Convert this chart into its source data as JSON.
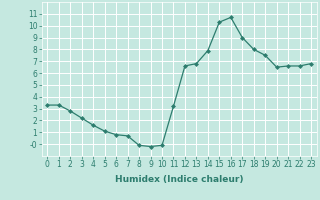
{
  "x": [
    0,
    1,
    2,
    3,
    4,
    5,
    6,
    7,
    8,
    9,
    10,
    11,
    12,
    13,
    14,
    15,
    16,
    17,
    18,
    19,
    20,
    21,
    22,
    23
  ],
  "y": [
    3.3,
    3.3,
    2.8,
    2.2,
    1.6,
    1.1,
    0.8,
    0.7,
    -0.1,
    -0.2,
    -0.1,
    3.2,
    6.6,
    6.8,
    7.9,
    10.3,
    10.7,
    9.0,
    8.0,
    7.5,
    6.5,
    6.6,
    6.6,
    6.8
  ],
  "xlabel": "Humidex (Indice chaleur)",
  "xlim": [
    -0.5,
    23.5
  ],
  "ylim": [
    -1.0,
    12.0
  ],
  "yticks": [
    0,
    1,
    2,
    3,
    4,
    5,
    6,
    7,
    8,
    9,
    10,
    11
  ],
  "ytick_labels": [
    "-0",
    "1",
    "2",
    "3",
    "4",
    "5",
    "6",
    "7",
    "8",
    "9",
    "10",
    "11"
  ],
  "xticks": [
    0,
    1,
    2,
    3,
    4,
    5,
    6,
    7,
    8,
    9,
    10,
    11,
    12,
    13,
    14,
    15,
    16,
    17,
    18,
    19,
    20,
    21,
    22,
    23
  ],
  "line_color": "#2d7d6e",
  "marker": "D",
  "marker_size": 2.0,
  "bg_color": "#c5e8e0",
  "grid_color": "#ffffff",
  "tick_color": "#2d7d6e",
  "label_fontsize": 6.0,
  "tick_fontsize": 5.5,
  "xlabel_fontsize": 6.5
}
